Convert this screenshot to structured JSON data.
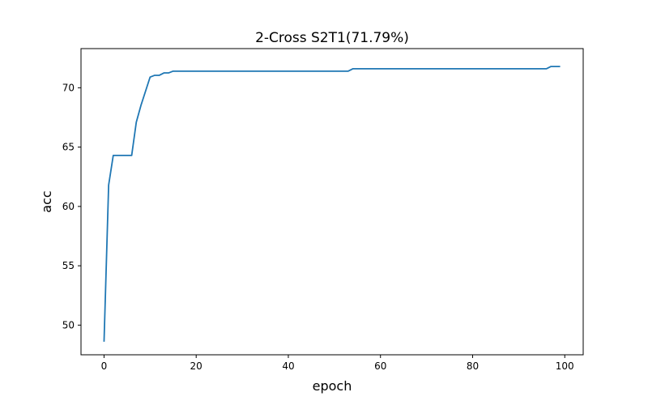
{
  "chart_data": {
    "type": "line",
    "title": "2-Cross S2T1(71.79%)",
    "xlabel": "epoch",
    "ylabel": "acc",
    "xlim": [
      -5,
      104
    ],
    "ylim": [
      47.5,
      73.3
    ],
    "xticks": [
      0,
      20,
      40,
      60,
      80,
      100
    ],
    "yticks": [
      50,
      55,
      60,
      65,
      70
    ],
    "grid": false,
    "legend": "none",
    "series": [
      {
        "color": "#1f77b4",
        "x": [
          0,
          1,
          2,
          3,
          4,
          5,
          6,
          7,
          8,
          9,
          10,
          11,
          12,
          13,
          14,
          15,
          16,
          17,
          18,
          19,
          20,
          21,
          22,
          23,
          24,
          25,
          26,
          27,
          28,
          29,
          30,
          31,
          32,
          33,
          34,
          35,
          36,
          37,
          38,
          39,
          40,
          41,
          42,
          43,
          44,
          45,
          46,
          47,
          48,
          49,
          50,
          51,
          52,
          53,
          54,
          55,
          56,
          57,
          58,
          59,
          60,
          61,
          62,
          63,
          64,
          65,
          66,
          67,
          68,
          69,
          70,
          71,
          72,
          73,
          74,
          75,
          76,
          77,
          78,
          79,
          80,
          81,
          82,
          83,
          84,
          85,
          86,
          87,
          88,
          89,
          90,
          91,
          92,
          93,
          94,
          95,
          96,
          97,
          98,
          99
        ],
        "y": [
          48.6,
          61.8,
          64.3,
          64.3,
          64.3,
          64.3,
          64.3,
          67.1,
          68.5,
          69.7,
          70.9,
          71.05,
          71.05,
          71.25,
          71.25,
          71.4,
          71.4,
          71.4,
          71.4,
          71.4,
          71.4,
          71.4,
          71.4,
          71.4,
          71.4,
          71.4,
          71.4,
          71.4,
          71.4,
          71.4,
          71.4,
          71.4,
          71.4,
          71.4,
          71.4,
          71.4,
          71.4,
          71.4,
          71.4,
          71.4,
          71.4,
          71.4,
          71.4,
          71.4,
          71.4,
          71.4,
          71.4,
          71.4,
          71.4,
          71.4,
          71.4,
          71.4,
          71.4,
          71.4,
          71.6,
          71.6,
          71.6,
          71.6,
          71.6,
          71.6,
          71.6,
          71.6,
          71.6,
          71.6,
          71.6,
          71.6,
          71.6,
          71.6,
          71.6,
          71.6,
          71.6,
          71.6,
          71.6,
          71.6,
          71.6,
          71.6,
          71.6,
          71.6,
          71.6,
          71.6,
          71.6,
          71.6,
          71.6,
          71.6,
          71.6,
          71.6,
          71.6,
          71.6,
          71.6,
          71.6,
          71.6,
          71.6,
          71.6,
          71.6,
          71.6,
          71.6,
          71.6,
          71.79,
          71.79,
          71.79
        ]
      }
    ]
  }
}
